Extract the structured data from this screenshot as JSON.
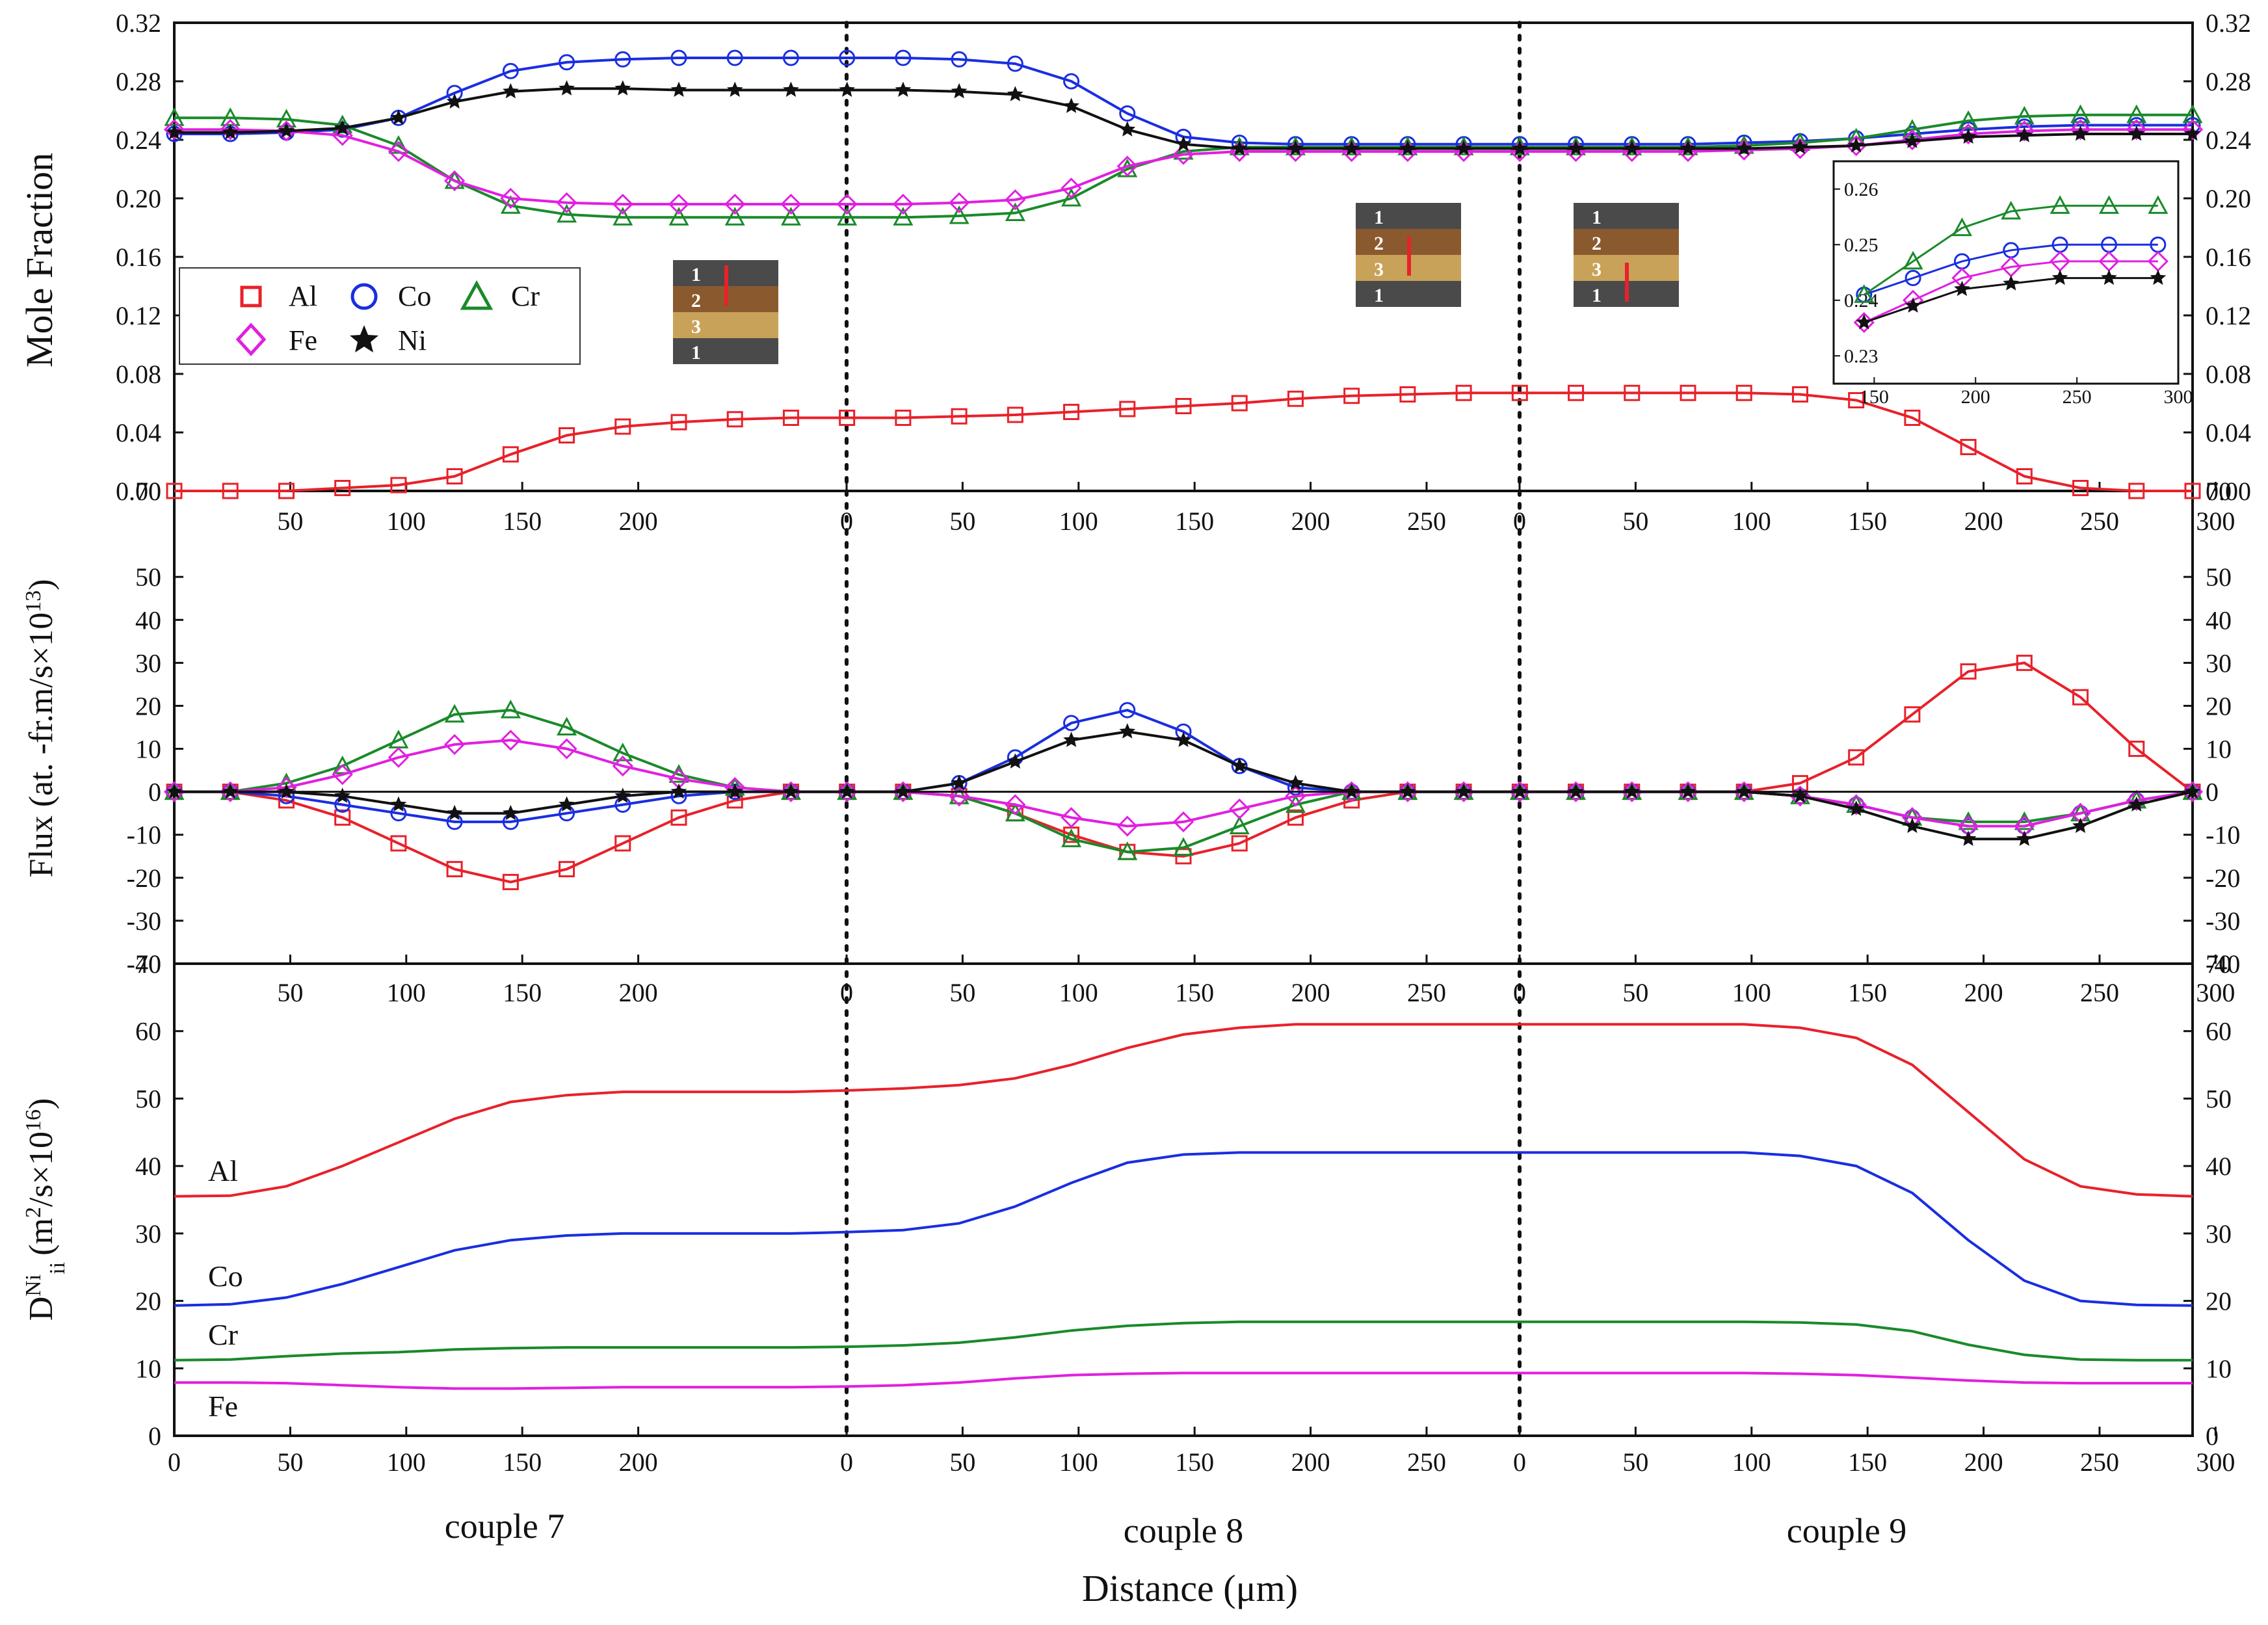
{
  "chart_data": {
    "type": "line",
    "xlabel": "Distance (μm)",
    "couple_labels": [
      "couple 7",
      "couple 8",
      "couple 9"
    ],
    "couple_lengths": [
      290,
      290,
      290
    ],
    "x_ticks": {
      "couple7": [
        "0",
        "50",
        "100",
        "150",
        "200"
      ],
      "couple8": [
        "0",
        "50",
        "100",
        "150",
        "200",
        "250"
      ],
      "couple9": [
        "0",
        "50",
        "100",
        "150",
        "200",
        "250",
        "300"
      ]
    },
    "mole_fraction_panel": {
      "ylabel": "Mole Fraction",
      "ylim": [
        0.0,
        0.32
      ],
      "yticks": [
        "0.00",
        "0.04",
        "0.08",
        "0.12",
        "0.16",
        "0.20",
        "0.24",
        "0.28",
        "0.32"
      ],
      "legend": [
        "Al",
        "Co",
        "Cr",
        "Fe",
        "Ni"
      ],
      "series": [
        {
          "name": "Al",
          "color": "#e8212a",
          "marker": "square",
          "values": [
            0.0,
            0.0,
            0.0,
            0.002,
            0.004,
            0.01,
            0.025,
            0.038,
            0.044,
            0.047,
            0.049,
            0.05,
            0.05,
            0.05,
            0.051,
            0.052,
            0.054,
            0.056,
            0.058,
            0.06,
            0.063,
            0.065,
            0.066,
            0.067,
            0.067,
            0.067,
            0.067,
            0.067,
            0.067,
            0.066,
            0.062,
            0.05,
            0.03,
            0.01,
            0.002,
            0.0,
            0.0
          ]
        },
        {
          "name": "Co",
          "color": "#1a2ee0",
          "marker": "circle",
          "values": [
            0.244,
            0.244,
            0.245,
            0.247,
            0.255,
            0.272,
            0.287,
            0.293,
            0.295,
            0.296,
            0.296,
            0.296,
            0.296,
            0.296,
            0.295,
            0.292,
            0.28,
            0.258,
            0.242,
            0.238,
            0.237,
            0.237,
            0.237,
            0.237,
            0.237,
            0.237,
            0.237,
            0.237,
            0.238,
            0.239,
            0.241,
            0.244,
            0.247,
            0.249,
            0.25,
            0.25,
            0.25
          ]
        },
        {
          "name": "Cr",
          "color": "#1a8a2a",
          "marker": "triangle",
          "values": [
            0.255,
            0.255,
            0.254,
            0.25,
            0.236,
            0.212,
            0.195,
            0.189,
            0.187,
            0.187,
            0.187,
            0.187,
            0.187,
            0.187,
            0.188,
            0.19,
            0.2,
            0.22,
            0.232,
            0.235,
            0.235,
            0.235,
            0.235,
            0.235,
            0.235,
            0.235,
            0.235,
            0.235,
            0.236,
            0.238,
            0.241,
            0.247,
            0.253,
            0.256,
            0.257,
            0.257,
            0.257
          ]
        },
        {
          "name": "Fe",
          "color": "#e020e0",
          "marker": "diamond",
          "values": [
            0.247,
            0.247,
            0.246,
            0.243,
            0.232,
            0.212,
            0.2,
            0.197,
            0.196,
            0.196,
            0.196,
            0.196,
            0.196,
            0.196,
            0.197,
            0.199,
            0.207,
            0.222,
            0.23,
            0.232,
            0.232,
            0.232,
            0.232,
            0.232,
            0.232,
            0.232,
            0.232,
            0.232,
            0.233,
            0.234,
            0.236,
            0.24,
            0.244,
            0.246,
            0.247,
            0.247,
            0.247
          ]
        },
        {
          "name": "Ni",
          "color": "#111111",
          "marker": "star",
          "values": [
            0.245,
            0.245,
            0.246,
            0.248,
            0.255,
            0.266,
            0.273,
            0.275,
            0.275,
            0.274,
            0.274,
            0.274,
            0.274,
            0.274,
            0.273,
            0.271,
            0.263,
            0.247,
            0.237,
            0.234,
            0.234,
            0.234,
            0.234,
            0.234,
            0.234,
            0.234,
            0.234,
            0.234,
            0.234,
            0.235,
            0.236,
            0.239,
            0.242,
            0.243,
            0.244,
            0.244,
            0.244
          ]
        }
      ],
      "inset": {
        "xlim": [
          130,
          300
        ],
        "ylim": [
          0.225,
          0.265
        ],
        "xticks": [
          "150",
          "200",
          "250",
          "300"
        ],
        "yticks": [
          "0.23",
          "0.24",
          "0.25",
          "0.26"
        ]
      },
      "layer_schematics": [
        {
          "layers": [
            "1",
            "2",
            "3",
            "1"
          ],
          "marker_layer": "2"
        },
        {
          "layers": [
            "1",
            "2",
            "3",
            "1"
          ],
          "marker_layer": "2/3"
        },
        {
          "layers": [
            "1",
            "2",
            "3",
            "1"
          ],
          "marker_layer": "3/1"
        }
      ]
    },
    "flux_panel": {
      "ylabel": "Flux (at. -fr.m/s×10",
      "ylabel_sup": "13",
      "ylabel_end": ")",
      "ylim": [
        -40,
        70
      ],
      "yticks": [
        "-40",
        "-30",
        "-20",
        "-10",
        "0",
        "10",
        "20",
        "30",
        "40",
        "50",
        "70"
      ],
      "series": [
        {
          "name": "Al",
          "color": "#e8212a",
          "values": [
            0,
            0,
            -2,
            -6,
            -12,
            -18,
            -21,
            -18,
            -12,
            -6,
            -2,
            0,
            0,
            0,
            -1,
            -5,
            -10,
            -14,
            -15,
            -12,
            -6,
            -2,
            0,
            0,
            0,
            0,
            0,
            0,
            0,
            2,
            8,
            18,
            28,
            30,
            22,
            10,
            0
          ]
        },
        {
          "name": "Co",
          "color": "#1a2ee0",
          "values": [
            0,
            0,
            -1,
            -3,
            -5,
            -7,
            -7,
            -5,
            -3,
            -1,
            0,
            0,
            0,
            0,
            2,
            8,
            16,
            19,
            14,
            6,
            1,
            0,
            0,
            0,
            0,
            0,
            0,
            0,
            0,
            -1,
            -3,
            -6,
            -8,
            -8,
            -5,
            -2,
            0
          ]
        },
        {
          "name": "Cr",
          "color": "#1a8a2a",
          "values": [
            0,
            0,
            2,
            6,
            12,
            18,
            19,
            15,
            9,
            4,
            1,
            0,
            0,
            0,
            -1,
            -5,
            -11,
            -14,
            -13,
            -8,
            -3,
            0,
            0,
            0,
            0,
            0,
            0,
            0,
            0,
            -1,
            -3,
            -6,
            -7,
            -7,
            -5,
            -2,
            0
          ]
        },
        {
          "name": "Fe",
          "color": "#e020e0",
          "values": [
            0,
            0,
            1,
            4,
            8,
            11,
            12,
            10,
            6,
            3,
            1,
            0,
            0,
            0,
            -1,
            -3,
            -6,
            -8,
            -7,
            -4,
            -1,
            0,
            0,
            0,
            0,
            0,
            0,
            0,
            0,
            -1,
            -3,
            -6,
            -8,
            -8,
            -5,
            -2,
            0
          ]
        },
        {
          "name": "Ni",
          "color": "#111111",
          "values": [
            0,
            0,
            0,
            -1,
            -3,
            -5,
            -5,
            -3,
            -1,
            0,
            0,
            0,
            0,
            0,
            2,
            7,
            12,
            14,
            12,
            6,
            2,
            0,
            0,
            0,
            0,
            0,
            0,
            0,
            0,
            -1,
            -4,
            -8,
            -11,
            -11,
            -8,
            -3,
            0
          ]
        }
      ]
    },
    "diffusivity_panel": {
      "ylabel": "D",
      "ylabel_sub": "ii",
      "ylabel_sup": "Ni",
      "ylabel_units": "(m",
      "ylabel_units_sup": "2",
      "ylabel_units_mid": "/s×10",
      "ylabel_units_sup2": "16",
      "ylabel_units_end": ")",
      "ylim": [
        0,
        70
      ],
      "yticks": [
        "0",
        "10",
        "20",
        "30",
        "40",
        "50",
        "60",
        "70"
      ],
      "series": [
        {
          "name": "Al",
          "color": "#e8212a",
          "values": [
            35.5,
            35.6,
            37,
            40,
            43.5,
            47,
            49.5,
            50.5,
            51,
            51,
            51,
            51,
            51.2,
            51.5,
            52,
            53,
            55,
            57.5,
            59.5,
            60.5,
            61,
            61,
            61,
            61,
            61,
            61,
            61,
            61,
            61,
            60.5,
            59,
            55,
            48,
            41,
            37,
            35.8,
            35.5
          ]
        },
        {
          "name": "Co",
          "color": "#1a2ee0",
          "values": [
            19.3,
            19.5,
            20.5,
            22.5,
            25,
            27.5,
            29,
            29.7,
            30,
            30,
            30,
            30,
            30.2,
            30.5,
            31.5,
            34,
            37.5,
            40.5,
            41.7,
            42,
            42,
            42,
            42,
            42,
            42,
            42,
            42,
            42,
            42,
            41.5,
            40,
            36,
            29,
            23,
            20,
            19.4,
            19.3
          ]
        },
        {
          "name": "Cr",
          "color": "#1a8a2a",
          "values": [
            11.2,
            11.3,
            11.8,
            12.2,
            12.4,
            12.8,
            13.0,
            13.1,
            13.1,
            13.1,
            13.1,
            13.1,
            13.2,
            13.4,
            13.8,
            14.6,
            15.6,
            16.3,
            16.7,
            16.9,
            16.9,
            16.9,
            16.9,
            16.9,
            16.9,
            16.9,
            16.9,
            16.9,
            16.9,
            16.8,
            16.5,
            15.5,
            13.5,
            12.0,
            11.3,
            11.2,
            11.2
          ]
        },
        {
          "name": "Fe",
          "color": "#e020e0",
          "values": [
            7.9,
            7.9,
            7.8,
            7.5,
            7.2,
            7.0,
            7.0,
            7.1,
            7.2,
            7.2,
            7.2,
            7.2,
            7.3,
            7.5,
            7.9,
            8.5,
            9.0,
            9.2,
            9.3,
            9.3,
            9.3,
            9.3,
            9.3,
            9.3,
            9.3,
            9.3,
            9.3,
            9.3,
            9.3,
            9.2,
            9.0,
            8.6,
            8.2,
            7.9,
            7.8,
            7.8,
            7.8
          ]
        }
      ],
      "curve_labels": [
        "Al",
        "Co",
        "Cr",
        "Fe"
      ]
    }
  }
}
